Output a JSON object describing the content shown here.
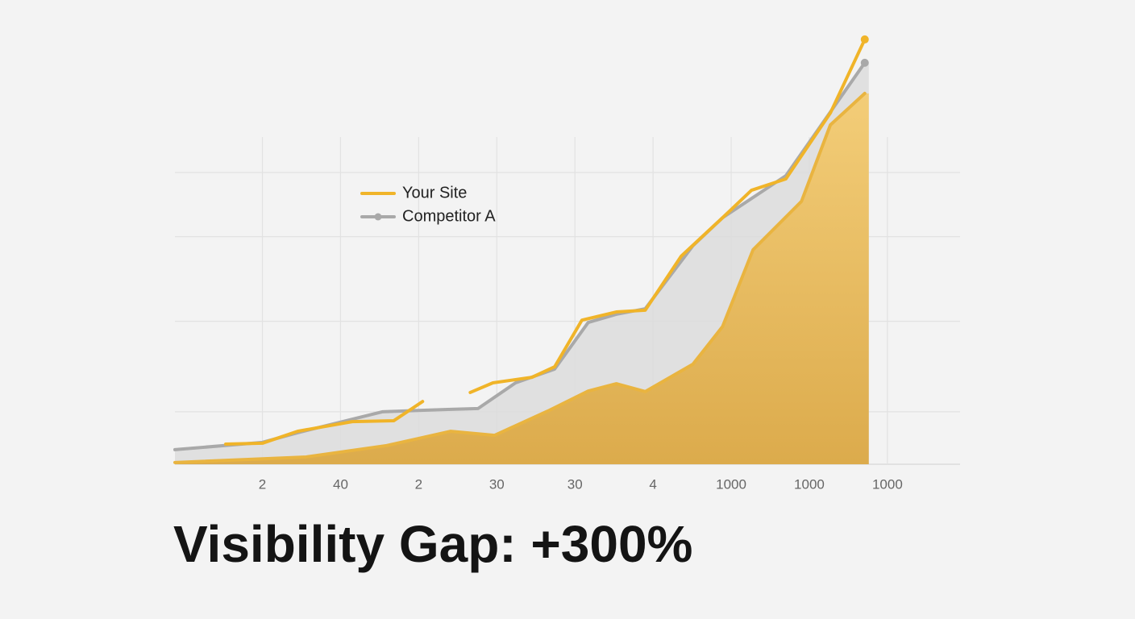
{
  "chart_data": {
    "type": "line",
    "title": "Visibility Gap: +300%",
    "xlim": [
      -0.12,
      9.93
    ],
    "xticks": [
      {
        "value": 1,
        "label": "2"
      },
      {
        "value": 2,
        "label": "40"
      },
      {
        "value": 3,
        "label": "2"
      },
      {
        "value": 4,
        "label": "30"
      },
      {
        "value": 5,
        "label": "30"
      },
      {
        "value": 6,
        "label": "4"
      },
      {
        "value": 7,
        "label": "1000"
      },
      {
        "value": 8,
        "label": "1000"
      },
      {
        "value": 9,
        "label": "1000"
      }
    ],
    "ylim": [
      0,
      150
    ],
    "yticks": [
      0,
      18,
      49,
      78,
      100
    ],
    "grid": true,
    "legend": "upper left",
    "series": [
      {
        "name": "Competitor A",
        "color": "#a9a9a9",
        "fill": "#dcdcdc",
        "x": [
          -0.12,
          1,
          1.45,
          2.54,
          3.37,
          3.76,
          4.24,
          4.74,
          5.17,
          5.53,
          5.9,
          6.51,
          6.89,
          7.7,
          8.71
        ],
        "values": [
          5.0,
          7.5,
          10.8,
          18.0,
          18.8,
          19.1,
          27.9,
          32.6,
          48.6,
          51.4,
          53.3,
          74.9,
          84.5,
          98.9,
          137.6
        ]
      },
      {
        "color": "#e9b440",
        "fill": "#e8bd5c",
        "x": [
          -0.12,
          1.56,
          2.59,
          3.41,
          3.97,
          4.65,
          5.17,
          5.53,
          5.9,
          6.51,
          6.89,
          7.28,
          7.9,
          8.27,
          8.71
        ],
        "values": [
          0.6,
          2.5,
          6.4,
          11.3,
          9.9,
          18.2,
          25.1,
          27.6,
          24.9,
          34.3,
          47.2,
          73.5,
          90.1,
          116.3,
          127.1
        ]
      },
      {
        "name": "Your Site",
        "color": "#f0b429",
        "x": [
          0.53,
          1,
          1.45,
          2.15,
          2.68,
          3.05,
          3.35,
          3.66,
          3.95,
          4.45,
          4.74,
          5.09,
          5.53,
          5.9,
          6.36,
          6.89,
          7.26,
          7.7,
          8.27,
          8.71
        ],
        "values": [
          6.9,
          7.2,
          11.3,
          14.6,
          14.9,
          21.5,
          null,
          24.6,
          27.9,
          29.8,
          33.4,
          49.4,
          52.2,
          52.8,
          71.3,
          84.5,
          93.9,
          97.8,
          120.4,
          145.6
        ]
      }
    ]
  }
}
